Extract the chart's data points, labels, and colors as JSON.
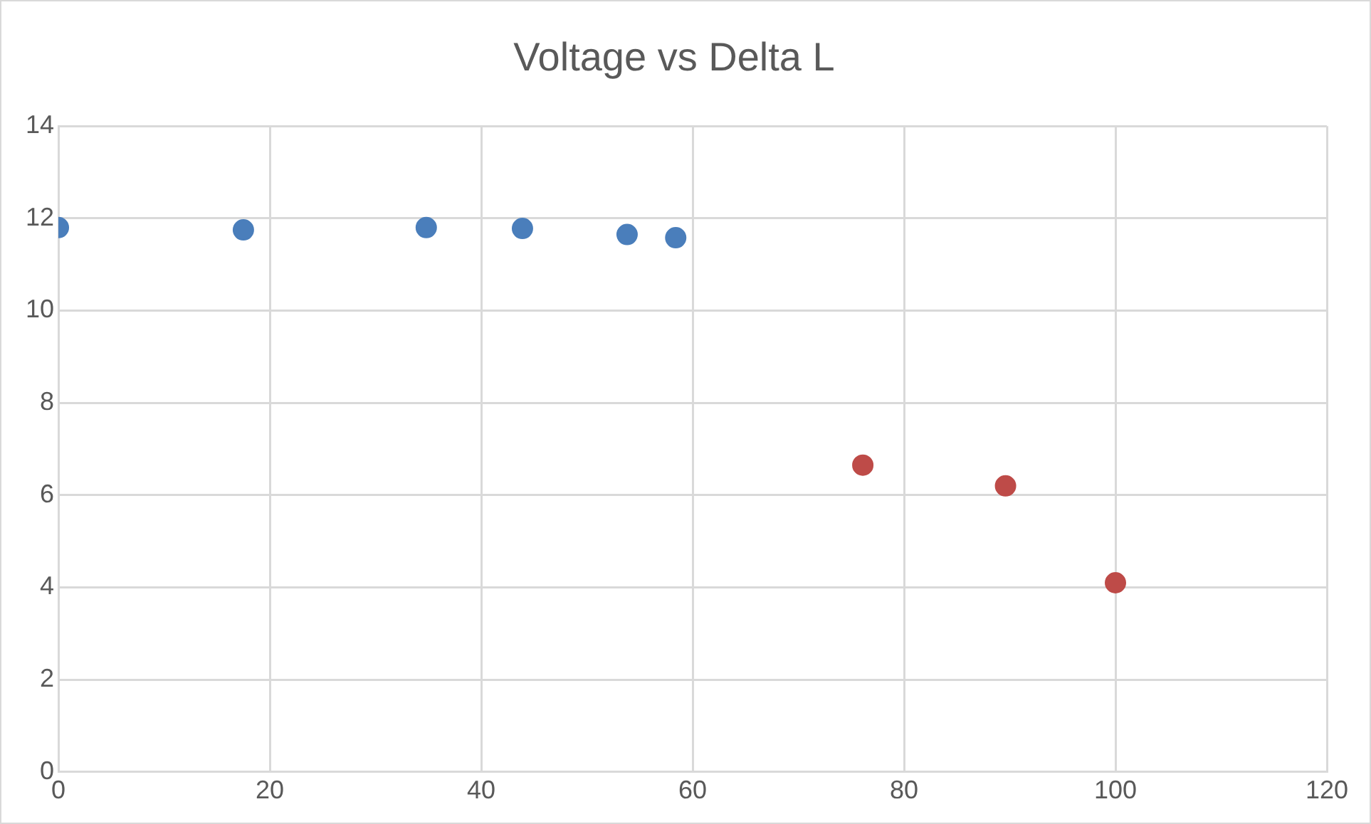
{
  "chart_data": {
    "type": "scatter",
    "title": "Voltage vs Delta L",
    "xlim": [
      0,
      120
    ],
    "xticks": [
      0,
      20,
      40,
      60,
      80,
      100,
      120
    ],
    "ylim": [
      0,
      14
    ],
    "yticks": [
      0,
      2,
      4,
      6,
      8,
      10,
      12,
      14
    ],
    "grid": true,
    "legend": false,
    "marker": "circle",
    "series": [
      {
        "color": "#4a7ebb",
        "x": [
          0,
          17.5,
          34.8,
          43.9,
          53.8,
          58.4
        ],
        "values": [
          11.8,
          11.75,
          11.8,
          11.78,
          11.65,
          11.58
        ]
      },
      {
        "color": "#be4b48",
        "x": [
          76.1,
          89.6,
          100
        ],
        "values": [
          6.65,
          6.2,
          4.1
        ]
      }
    ]
  }
}
